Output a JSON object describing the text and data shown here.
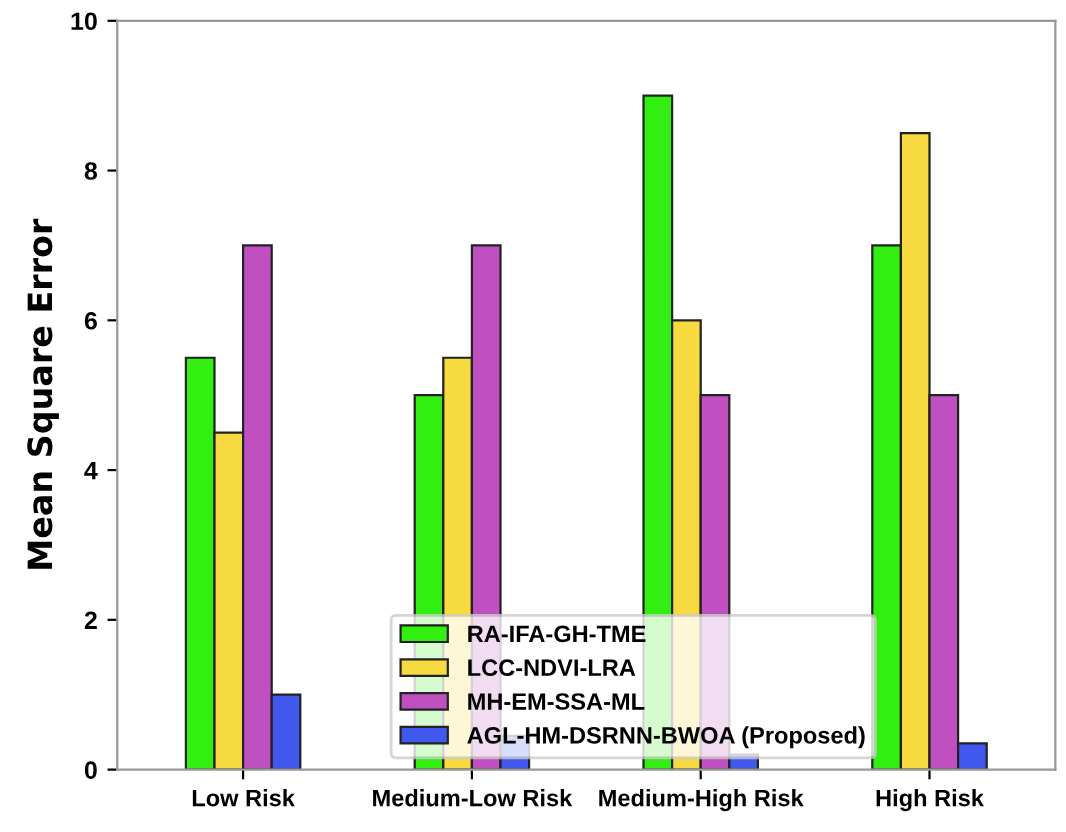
{
  "chart_data": {
    "type": "bar",
    "ylabel": "Mean Square Error",
    "categories": [
      "Low Risk",
      "Medium-Low Risk",
      "Medium-High Risk",
      "High Risk"
    ],
    "series": [
      {
        "name": "RA-IFA-GH-TME",
        "color": "#33ee11",
        "values": [
          5.5,
          5,
          9,
          7
        ]
      },
      {
        "name": "LCC-NDVI-LRA",
        "color": "#f7d940",
        "values": [
          4.5,
          5.5,
          6,
          8.5
        ]
      },
      {
        "name": "MH-EM-SSA-ML",
        "color": "#c050c0",
        "values": [
          7,
          7,
          5,
          5
        ]
      },
      {
        "name": "AGL-HM-DSRNN-BWOA (Proposed)",
        "color": "#4058ee",
        "values": [
          1,
          0.45,
          0.2,
          0.35
        ]
      }
    ],
    "ylim": [
      0,
      10
    ],
    "yticks": [
      0,
      2,
      4,
      6,
      8,
      10
    ],
    "grid": false,
    "legend": "bottom"
  }
}
